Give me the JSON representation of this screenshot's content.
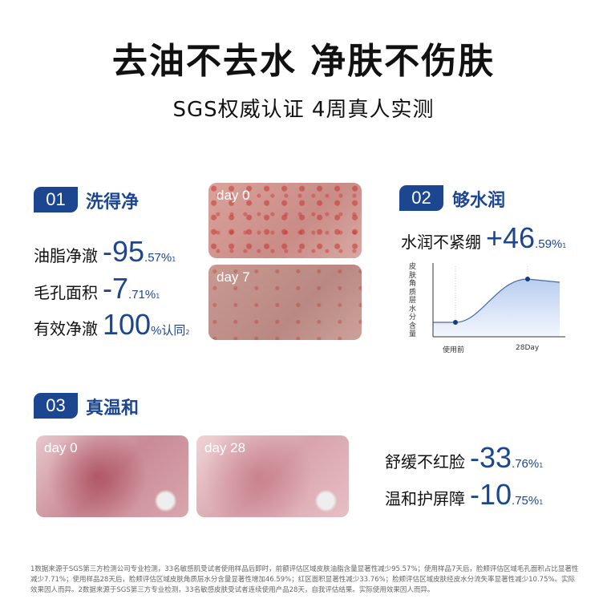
{
  "header": {
    "title": "去油不去水 净肤不伤肤",
    "subtitle": "SGS权威认证 4周真人实测"
  },
  "section1": {
    "num": "01",
    "title": "洗得净",
    "stats": [
      {
        "label": "油脂净澈",
        "sign": "-",
        "int": "95",
        "dec": ".57%",
        "sup": "1"
      },
      {
        "label": "毛孔面积",
        "sign": "-",
        "int": "7",
        "dec": ".71%",
        "sup": "1"
      },
      {
        "label": "有效净澈",
        "sign": "",
        "int": "100",
        "dec": "%认同",
        "sup": "2"
      }
    ],
    "images": [
      {
        "label": "day 0"
      },
      {
        "label": "day 7"
      }
    ]
  },
  "section2": {
    "num": "02",
    "title": "够水润",
    "stat": {
      "label": "水润不紧绷",
      "sign": "+",
      "int": "46",
      "dec": ".59%",
      "sup": "1"
    },
    "chart": {
      "ylabel": "皮肤角质层水分含量",
      "xticks": [
        "使用前",
        "28Day"
      ],
      "accent": "#1c4690"
    }
  },
  "section3": {
    "num": "03",
    "title": "真温和",
    "images": [
      {
        "label": "day 0"
      },
      {
        "label": "day 28"
      }
    ],
    "stats": [
      {
        "label": "舒缓不红脸",
        "sign": "-",
        "int": "33",
        "dec": ".76%",
        "sup": "1"
      },
      {
        "label": "温和护屏障",
        "sign": "-",
        "int": "10",
        "dec": ".75%",
        "sup": "1"
      }
    ]
  },
  "footnote": "1数据来源于SGS第三方检测公司专业检测，33名敏感肌受试者使用样品后即时，前额评估区域皮肤油脂含量显著性减少95.57%；使用样品7天后，脸颊评估区域毛孔面积占比显著性减少7.71%；使用样品28天后，脸颊评估区域皮肤角质层水分含量显著性增加46.59%；红区面积显著性减少33.76%；脸颊评估区域皮肤经皮水分流失率显著性减少10.75%。实际效果因人而异。2数据来源于SGS第三方专业检测，33名敏感皮肤受试者连续使用产品28天，自我评估结果。实际使用效果因人而异。"
}
